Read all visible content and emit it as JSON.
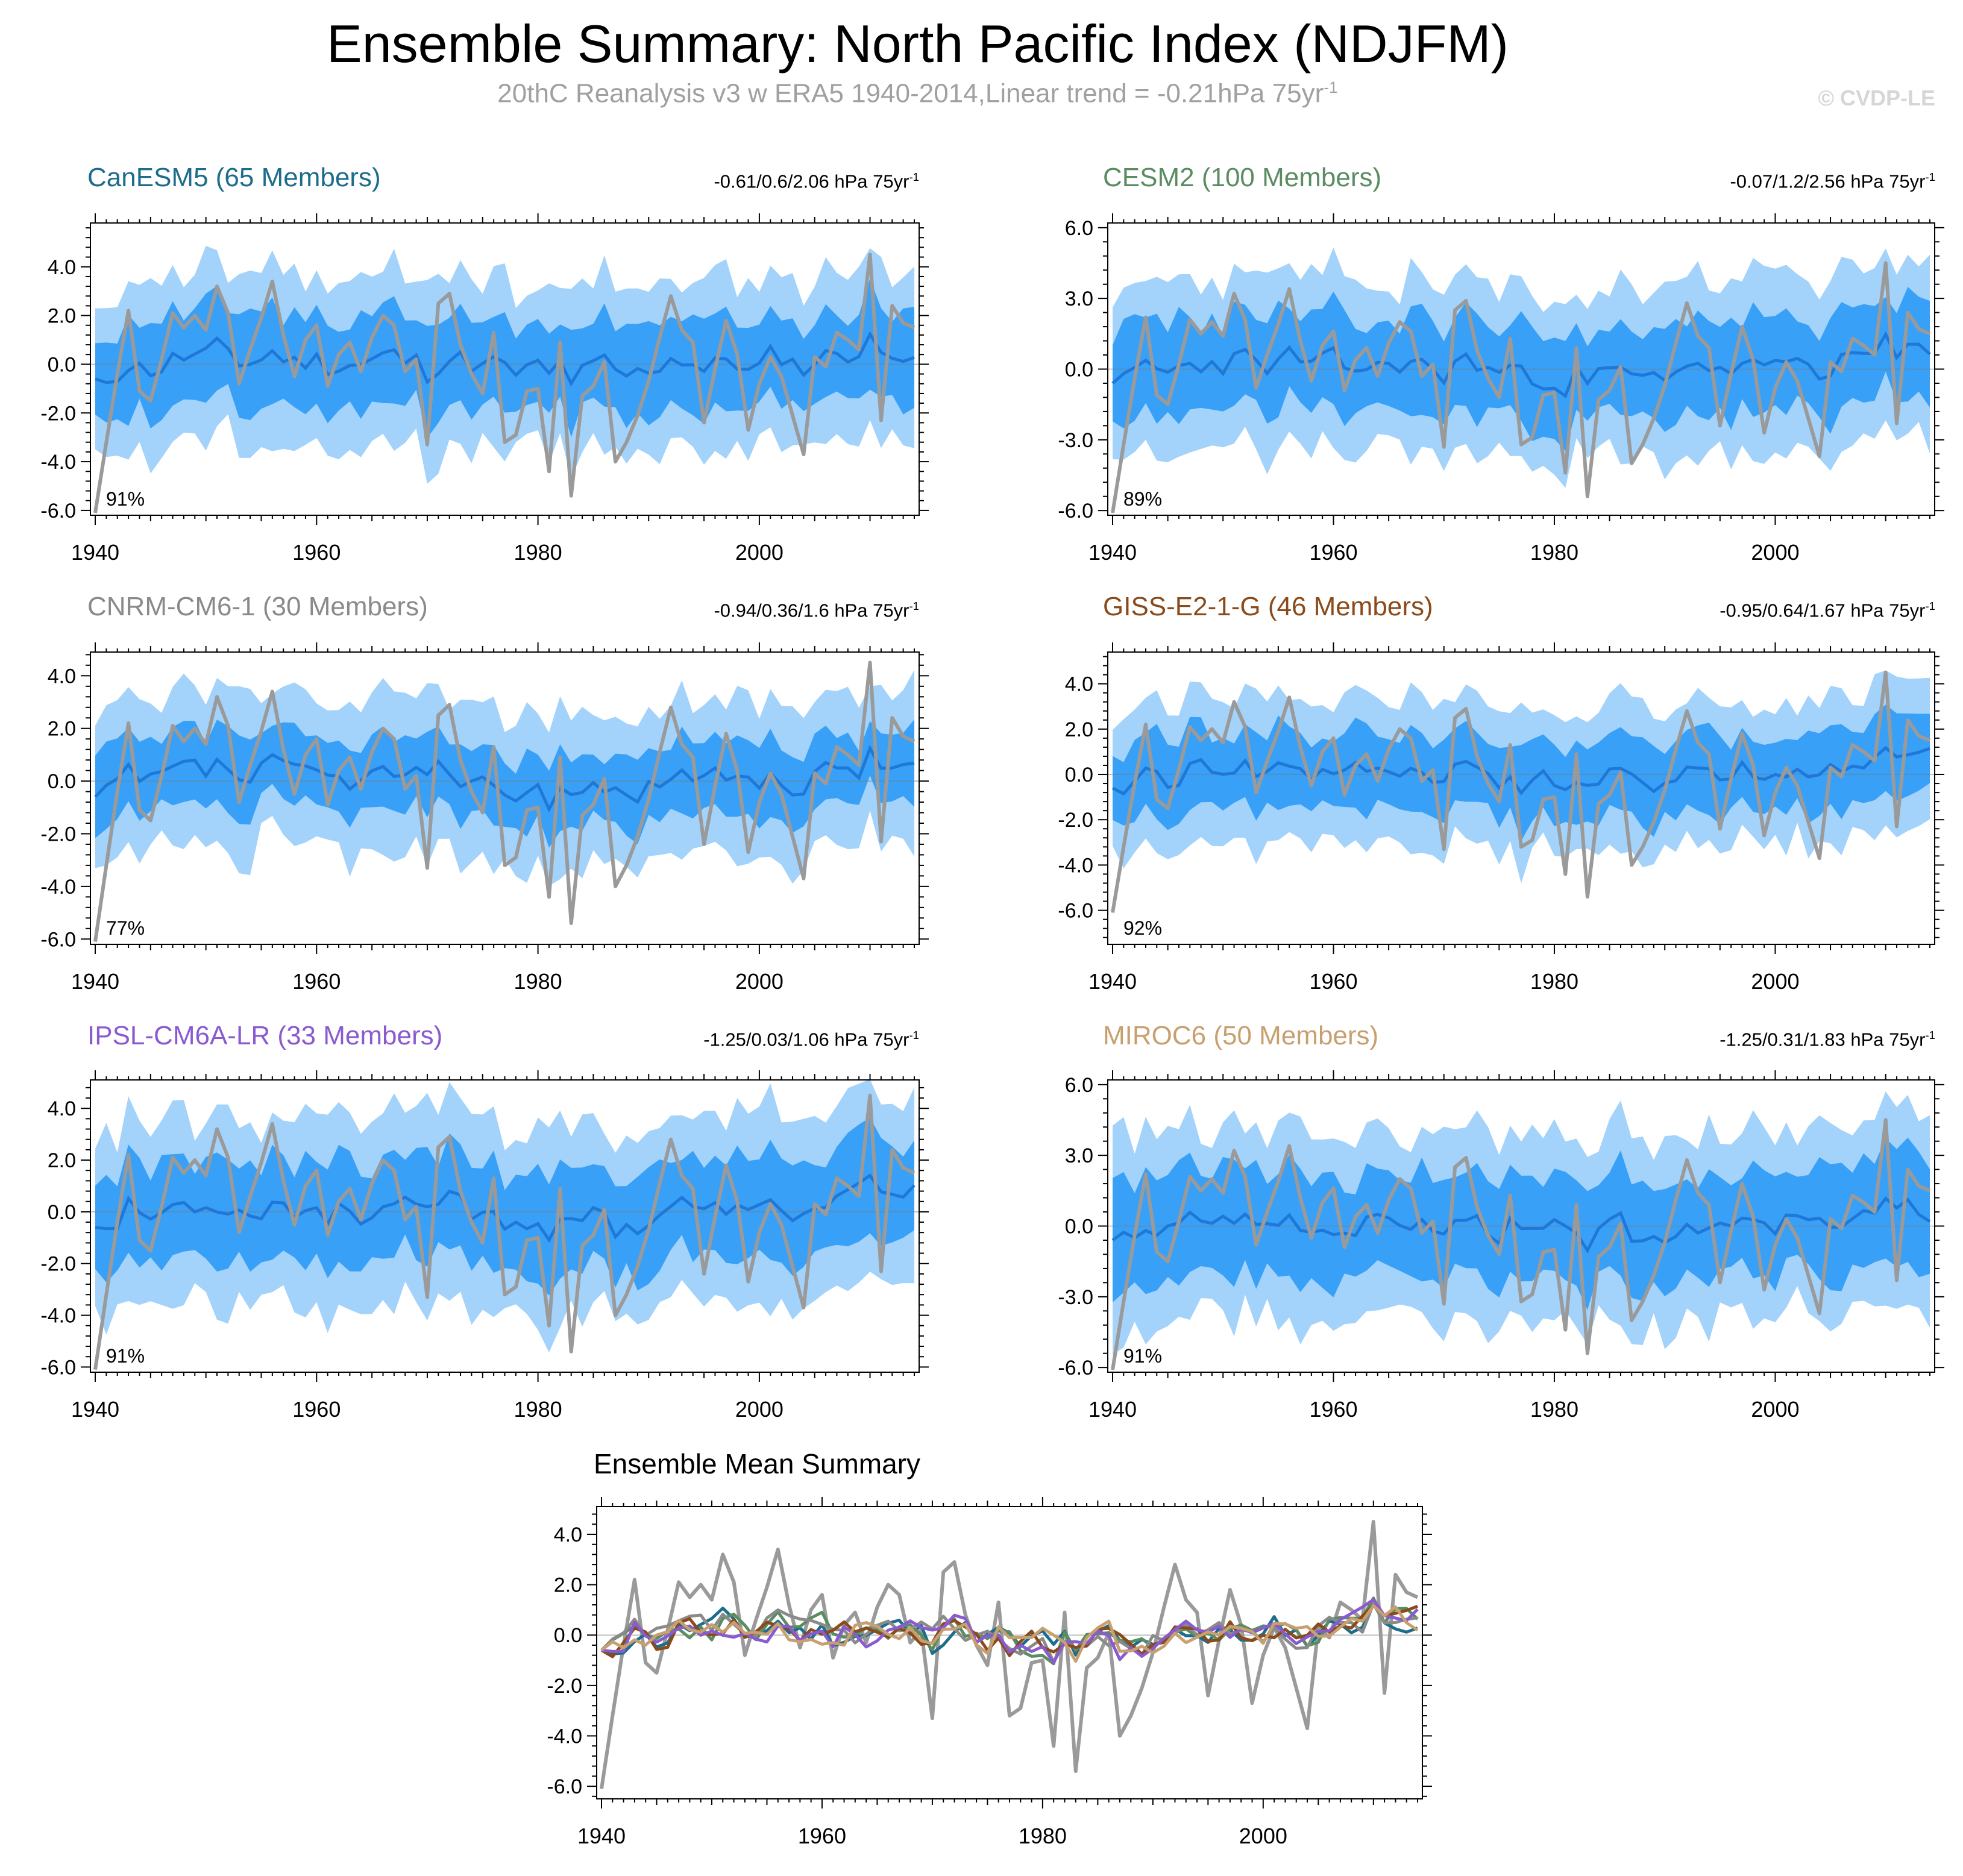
{
  "figure": {
    "title": "Ensemble Summary: North Pacific Index (NDJFM)",
    "subtitle_main": "20thC Reanalysis v3 w ERA5 1940-2014,Linear trend = -0.21hPa 75yr",
    "subtitle_sup": "-1",
    "watermark": "© CVDP-LE"
  },
  "colors": {
    "outer_band": "#a3d2fb",
    "inner_band": "#38a0f7",
    "ens_mean": "#1f77d8",
    "observed": "#9a9a9a",
    "zero_line": "#7a7a7a"
  },
  "chart_data": [
    {
      "type": "area",
      "id": "canesm5",
      "title": "CanESM5 (65 Members)",
      "title_color": "#1c6c8c",
      "trend_stats": "-0.61/0.6/2.06 hPa 75yr",
      "stats_sup": "-1",
      "percent_label": "91%",
      "ylim": [
        -6.2,
        5.8
      ],
      "yticks": [
        -6.0,
        -4.0,
        -2.0,
        0.0,
        2.0,
        4.0
      ],
      "tick_labels": [
        "-6.0",
        "-4.0",
        "-2.0",
        "0.0",
        "2.0",
        "4.0"
      ],
      "x_range": [
        1940,
        2014
      ],
      "xticks": [
        1940,
        1960,
        1980,
        2000
      ],
      "inner_half_width": 1.85,
      "outer_half_width": 3.5,
      "seed": 11,
      "series": [
        "observed",
        "ensemble mean",
        "inner percentile band",
        "outer percentile band"
      ]
    },
    {
      "type": "area",
      "id": "cesm2",
      "title": "CESM2 (100 Members)",
      "title_color": "#5a8c62",
      "trend_stats": "-0.07/1.2/2.56 hPa 75yr",
      "stats_sup": "-1",
      "percent_label": "89%",
      "ylim": [
        -6.2,
        6.2
      ],
      "yticks": [
        -6.0,
        -3.0,
        0.0,
        3.0,
        6.0
      ],
      "tick_labels": [
        "-6.0",
        "-3.0",
        "0.0",
        "3.0",
        "6.0"
      ],
      "x_range": [
        1940,
        2014
      ],
      "xticks": [
        1940,
        1960,
        1980,
        2000
      ],
      "inner_half_width": 2.0,
      "outer_half_width": 3.7,
      "seed": 23,
      "series": [
        "observed",
        "ensemble mean",
        "inner percentile band",
        "outer percentile band"
      ]
    },
    {
      "type": "area",
      "id": "cnrm",
      "title": "CNRM-CM6-1 (30 Members)",
      "title_color": "#8a8a8a",
      "trend_stats": "-0.94/0.36/1.6 hPa 75yr",
      "stats_sup": "-1",
      "percent_label": "77%",
      "ylim": [
        -6.2,
        4.9
      ],
      "yticks": [
        -6.0,
        -4.0,
        -2.0,
        0.0,
        2.0,
        4.0
      ],
      "tick_labels": [
        "-6.0",
        "-4.0",
        "-2.0",
        "0.0",
        "2.0",
        "4.0"
      ],
      "x_range": [
        1940,
        2014
      ],
      "xticks": [
        1940,
        1960,
        1980,
        2000
      ],
      "inner_half_width": 1.35,
      "outer_half_width": 2.9,
      "seed": 37,
      "series": [
        "observed",
        "ensemble mean",
        "inner percentile band",
        "outer percentile band"
      ]
    },
    {
      "type": "area",
      "id": "giss",
      "title": "GISS-E2-1-G (46 Members)",
      "title_color": "#8a4a1a",
      "trend_stats": "-0.95/0.64/1.67 hPa 75yr",
      "stats_sup": "-1",
      "percent_label": "92%",
      "ylim": [
        -7.5,
        5.4
      ],
      "yticks": [
        -6.0,
        -4.0,
        -2.0,
        0.0,
        2.0,
        4.0
      ],
      "tick_labels": [
        "-6.0",
        "-4.0",
        "-2.0",
        "0.0",
        "2.0",
        "4.0"
      ],
      "x_range": [
        1940,
        2014
      ],
      "xticks": [
        1940,
        1960,
        1980,
        2000
      ],
      "inner_half_width": 1.7,
      "outer_half_width": 3.2,
      "seed": 41,
      "series": [
        "observed",
        "ensemble mean",
        "inner percentile band",
        "outer percentile band"
      ]
    },
    {
      "type": "area",
      "id": "ipsl",
      "title": "IPSL-CM6A-LR (33 Members)",
      "title_color": "#8a5ad0",
      "trend_stats": "-1.25/0.03/1.06 hPa 75yr",
      "stats_sup": "-1",
      "percent_label": "91%",
      "ylim": [
        -6.2,
        5.1
      ],
      "yticks": [
        -6.0,
        -4.0,
        -2.0,
        0.0,
        2.0,
        4.0
      ],
      "tick_labels": [
        "-6.0",
        "-4.0",
        "-2.0",
        "0.0",
        "2.0",
        "4.0"
      ],
      "x_range": [
        1940,
        2014
      ],
      "xticks": [
        1940,
        1960,
        1980,
        2000
      ],
      "inner_half_width": 1.9,
      "outer_half_width": 3.6,
      "seed": 53,
      "series": [
        "observed",
        "ensemble mean",
        "inner percentile band",
        "outer percentile band"
      ]
    },
    {
      "type": "area",
      "id": "miroc6",
      "title": "MIROC6 (50 Members)",
      "title_color": "#c8a070",
      "trend_stats": "-1.25/0.31/1.83 hPa 75yr",
      "stats_sup": "-1",
      "percent_label": "91%",
      "ylim": [
        -6.2,
        6.2
      ],
      "yticks": [
        -6.0,
        -3.0,
        0.0,
        3.0,
        6.0
      ],
      "tick_labels": [
        "-6.0",
        "-3.0",
        "0.0",
        "3.0",
        "6.0"
      ],
      "x_range": [
        1940,
        2014
      ],
      "xticks": [
        1940,
        1960,
        1980,
        2000
      ],
      "inner_half_width": 2.2,
      "outer_half_width": 4.0,
      "seed": 67,
      "series": [
        "observed",
        "ensemble mean",
        "inner percentile band",
        "outer percentile band"
      ]
    },
    {
      "type": "line",
      "id": "ensemble-mean-summary",
      "title": "Ensemble Mean Summary",
      "ylim": [
        -6.5,
        5.1
      ],
      "yticks": [
        -6.0,
        -4.0,
        -2.0,
        0.0,
        2.0,
        4.0
      ],
      "tick_labels": [
        "-6.0",
        "-4.0",
        "-2.0",
        "0.0",
        "2.0",
        "4.0"
      ],
      "x_range": [
        1940,
        2014
      ],
      "xticks": [
        1940,
        1960,
        1980,
        2000
      ],
      "lines": [
        {
          "name": "Observed",
          "color": "#9a9a9a"
        },
        {
          "name": "CanESM5",
          "color": "#1c6c8c",
          "seed": 11
        },
        {
          "name": "CESM2",
          "color": "#5a8c62",
          "seed": 23
        },
        {
          "name": "CNRM-CM6-1",
          "color": "#8a8a8a",
          "seed": 37
        },
        {
          "name": "GISS-E2-1-G",
          "color": "#8a4a1a",
          "seed": 41
        },
        {
          "name": "IPSL-CM6A-LR",
          "color": "#8a5ad0",
          "seed": 53
        },
        {
          "name": "MIROC6",
          "color": "#c8a070",
          "seed": 67
        }
      ]
    }
  ],
  "observed_series": {
    "years": "1940-2014",
    "values": [
      -6.1,
      -3.2,
      -0.4,
      2.2,
      -1.1,
      -1.5,
      0.2,
      2.1,
      1.5,
      2.0,
      1.4,
      3.2,
      2.1,
      -0.8,
      0.6,
      1.9,
      3.4,
      1.2,
      -0.5,
      1.0,
      1.6,
      -0.9,
      0.4,
      0.9,
      -0.3,
      1.1,
      2.0,
      1.6,
      -0.3,
      0.2,
      -3.3,
      2.5,
      2.9,
      0.8,
      -0.4,
      -1.2,
      1.3,
      -3.2,
      -2.9,
      -1.1,
      -1.0,
      -4.4,
      0.9,
      -5.4,
      -1.3,
      -0.9,
      0.1,
      -4.0,
      -3.2,
      -2.1,
      -0.7,
      1.1,
      2.8,
      1.4,
      0.9,
      -2.4,
      -0.2,
      1.8,
      0.4,
      -2.7,
      -0.8,
      0.3,
      -0.5,
      -2.1,
      -3.7,
      0.3,
      -0.1,
      1.3,
      1.0,
      0.6,
      4.5,
      -2.3,
      2.4,
      1.7,
      1.5
    ]
  }
}
